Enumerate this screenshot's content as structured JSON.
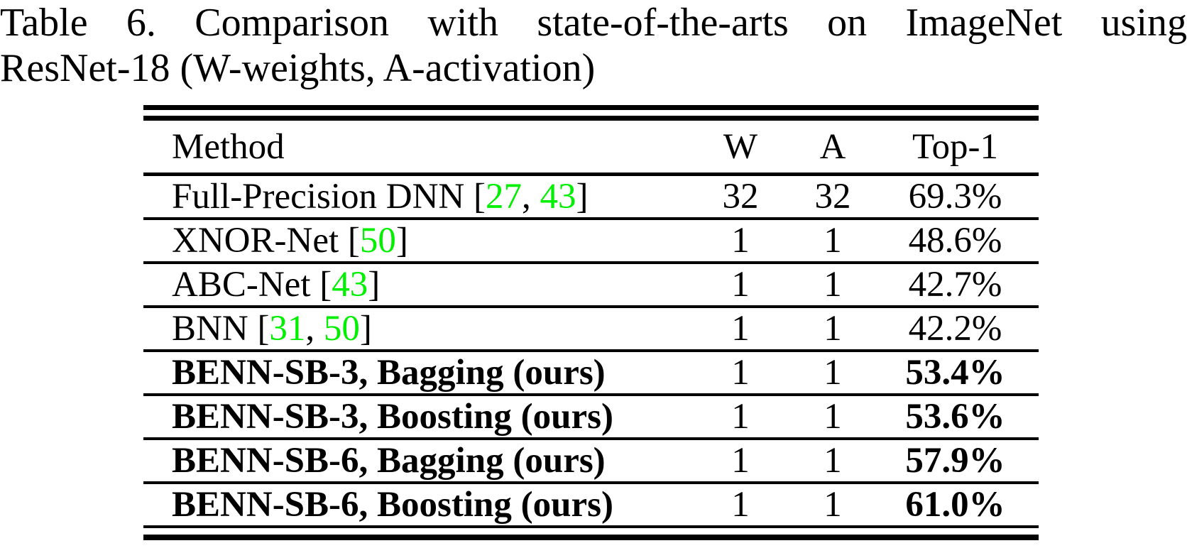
{
  "caption": {
    "line1": "Table 6. Comparison with state-of-the-arts on ImageNet using",
    "line2": "ResNet-18 (W-weights, A-activation)"
  },
  "table": {
    "columns": [
      "Method",
      "W",
      "A",
      "Top-1"
    ],
    "citation_open": "[",
    "citation_sep": ", ",
    "citation_close": "]",
    "rows": [
      {
        "method": "Full-Precision DNN",
        "citations": [
          "27",
          "43"
        ],
        "w": "32",
        "a": "32",
        "top1": "69.3%",
        "bold": false
      },
      {
        "method": "XNOR-Net",
        "citations": [
          "50"
        ],
        "w": "1",
        "a": "1",
        "top1": "48.6%",
        "bold": false
      },
      {
        "method": "ABC-Net",
        "citations": [
          "43"
        ],
        "w": "1",
        "a": "1",
        "top1": "42.7%",
        "bold": false
      },
      {
        "method": "BNN",
        "citations": [
          "31",
          "50"
        ],
        "w": "1",
        "a": "1",
        "top1": "42.2%",
        "bold": false
      },
      {
        "method": "BENN-SB-3, Bagging (ours)",
        "citations": [],
        "w": "1",
        "a": "1",
        "top1": "53.4%",
        "bold": true
      },
      {
        "method": "BENN-SB-3, Boosting (ours)",
        "citations": [],
        "w": "1",
        "a": "1",
        "top1": "53.6%",
        "bold": true
      },
      {
        "method": "BENN-SB-6, Bagging (ours)",
        "citations": [],
        "w": "1",
        "a": "1",
        "top1": "57.9%",
        "bold": true
      },
      {
        "method": "BENN-SB-6, Boosting (ours)",
        "citations": [],
        "w": "1",
        "a": "1",
        "top1": "61.0%",
        "bold": true
      }
    ]
  },
  "colors": {
    "text": "#000000",
    "citation_green": "#00F000",
    "background": "#FFFFFF"
  }
}
